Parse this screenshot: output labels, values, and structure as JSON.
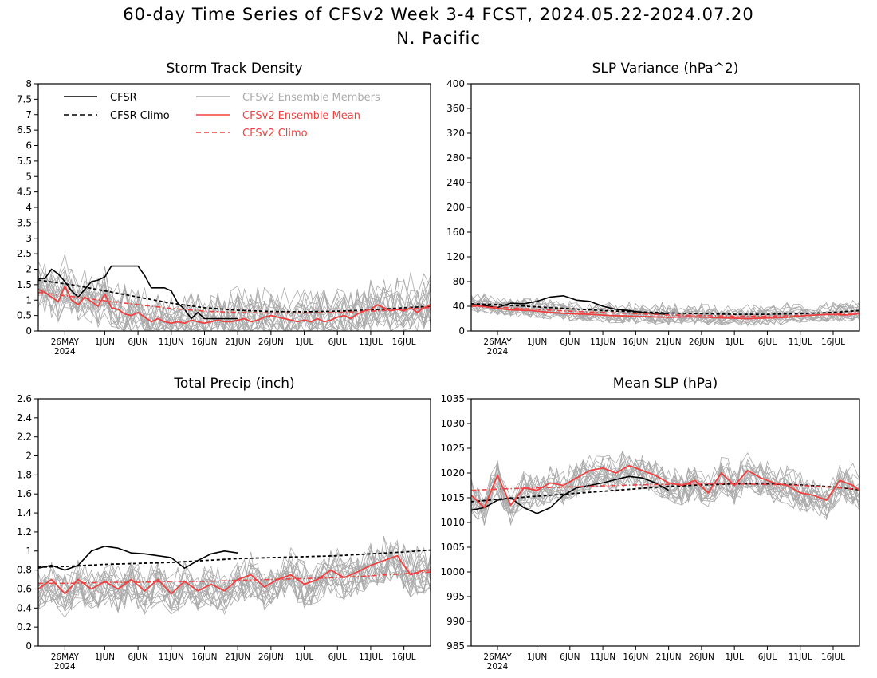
{
  "figure": {
    "title": "60-day Time Series of CFSv2 Week 3-4 FCST, 2024.05.22-2024.07.20",
    "subtitle": "N. Pacific"
  },
  "colors": {
    "cfsr": "#000000",
    "ensemble_members": "#aaaaaa",
    "ensemble_mean": "#f04040",
    "background": "#ffffff"
  },
  "chart_data": [
    {
      "type": "line",
      "title": "Storm Track Density",
      "xlabel": "",
      "ylabel": "",
      "ylim": [
        0,
        8
      ],
      "yticks": [
        0,
        0.5,
        1,
        1.5,
        2,
        2.5,
        3,
        3.5,
        4,
        4.5,
        5,
        5.5,
        6,
        6.5,
        7,
        7.5,
        8
      ],
      "x_ticks": [
        {
          "day": 4,
          "label": "26MAY",
          "sublabel": "2024"
        },
        {
          "day": 10,
          "label": "1JUN"
        },
        {
          "day": 15,
          "label": "6JUN"
        },
        {
          "day": 20,
          "label": "11JUN"
        },
        {
          "day": 25,
          "label": "16JUN"
        },
        {
          "day": 30,
          "label": "21JUN"
        },
        {
          "day": 35,
          "label": "26JUN"
        },
        {
          "day": 40,
          "label": "1JUL"
        },
        {
          "day": 45,
          "label": "6JUL"
        },
        {
          "day": 50,
          "label": "11JUL"
        },
        {
          "day": 55,
          "label": "16JUL"
        }
      ],
      "grid": false,
      "legend": {
        "placement": "top-left",
        "entries": [
          "CFSR",
          "CFSR Climo",
          "CFSv2 Ensemble Members",
          "CFSv2 Ensemble Mean",
          "CFSv2 Climo"
        ]
      },
      "x_start_date": "2024-05-22",
      "series": [
        {
          "name": "CFSR",
          "style": "solid-black",
          "x": [
            0,
            1,
            2,
            3,
            4,
            5,
            6,
            7,
            8,
            9,
            10,
            11,
            12,
            13,
            14,
            15,
            16,
            17,
            18,
            19,
            20,
            21,
            22,
            23,
            24,
            25,
            26,
            27,
            28,
            29,
            30
          ],
          "values": [
            1.7,
            1.7,
            2.0,
            1.85,
            1.6,
            1.3,
            1.1,
            1.35,
            1.6,
            1.65,
            1.75,
            2.1,
            2.1,
            2.1,
            2.1,
            2.1,
            1.8,
            1.4,
            1.4,
            1.4,
            1.3,
            0.9,
            0.7,
            0.4,
            0.6,
            0.4,
            0.4,
            0.4,
            0.4,
            0.4,
            0.4
          ]
        },
        {
          "name": "CFSR Climo",
          "style": "dashed-black",
          "x": [
            0,
            5,
            10,
            15,
            20,
            25,
            30,
            35,
            40,
            45,
            50,
            55,
            59
          ],
          "values": [
            1.65,
            1.5,
            1.3,
            1.1,
            0.9,
            0.75,
            0.67,
            0.63,
            0.62,
            0.64,
            0.68,
            0.75,
            0.8
          ]
        },
        {
          "name": "CFSv2 Ensemble Mean",
          "style": "solid-red",
          "x": [
            0,
            1,
            2,
            3,
            4,
            5,
            6,
            7,
            8,
            9,
            10,
            11,
            12,
            13,
            14,
            15,
            16,
            17,
            18,
            19,
            20,
            21,
            22,
            23,
            24,
            25,
            26,
            27,
            28,
            29,
            30,
            31,
            32,
            33,
            34,
            35,
            36,
            37,
            38,
            39,
            40,
            41,
            42,
            43,
            44,
            45,
            46,
            47,
            48,
            49,
            50,
            51,
            52,
            53,
            54,
            55,
            56,
            57,
            58,
            59
          ],
          "values": [
            1.35,
            1.25,
            1.1,
            0.95,
            1.45,
            1.0,
            0.85,
            1.1,
            0.95,
            0.8,
            1.2,
            0.75,
            0.7,
            0.55,
            0.5,
            0.6,
            0.45,
            0.3,
            0.4,
            0.3,
            0.25,
            0.3,
            0.25,
            0.35,
            0.3,
            0.25,
            0.3,
            0.35,
            0.3,
            0.3,
            0.35,
            0.4,
            0.3,
            0.35,
            0.45,
            0.5,
            0.45,
            0.4,
            0.35,
            0.3,
            0.35,
            0.3,
            0.4,
            0.3,
            0.35,
            0.45,
            0.5,
            0.4,
            0.55,
            0.65,
            0.7,
            0.85,
            0.75,
            0.65,
            0.7,
            0.65,
            0.75,
            0.6,
            0.75,
            0.85
          ]
        },
        {
          "name": "CFSv2 Climo",
          "style": "dashed-red",
          "x": [
            0,
            5,
            10,
            15,
            20,
            25,
            30,
            35,
            40,
            45,
            50,
            55,
            59
          ],
          "values": [
            1.25,
            1.12,
            0.98,
            0.85,
            0.73,
            0.64,
            0.6,
            0.58,
            0.58,
            0.6,
            0.64,
            0.7,
            0.76
          ]
        }
      ],
      "ensemble_band": {
        "name": "CFSv2 Ensemble Members",
        "min_offset": -0.7,
        "max_offset": 1.2
      }
    },
    {
      "type": "line",
      "title": "SLP Variance (hPa^2)",
      "xlabel": "",
      "ylabel": "",
      "ylim": [
        0,
        400
      ],
      "yticks": [
        0,
        40,
        80,
        120,
        160,
        200,
        240,
        280,
        320,
        360,
        400
      ],
      "x_ticks": [
        {
          "day": 4,
          "label": "26MAY",
          "sublabel": "2024"
        },
        {
          "day": 10,
          "label": "1JUN"
        },
        {
          "day": 15,
          "label": "6JUN"
        },
        {
          "day": 20,
          "label": "11JUN"
        },
        {
          "day": 25,
          "label": "16JUN"
        },
        {
          "day": 30,
          "label": "21JUN"
        },
        {
          "day": 35,
          "label": "26JUN"
        },
        {
          "day": 40,
          "label": "1JUL"
        },
        {
          "day": 45,
          "label": "6JUL"
        },
        {
          "day": 50,
          "label": "11JUL"
        },
        {
          "day": 55,
          "label": "16JUL"
        }
      ],
      "grid": false,
      "x_start_date": "2024-05-22",
      "series": [
        {
          "name": "CFSR",
          "style": "solid-black",
          "x": [
            0,
            2,
            4,
            6,
            8,
            10,
            12,
            14,
            16,
            18,
            20,
            22,
            24,
            26,
            28,
            30
          ],
          "values": [
            43,
            41,
            38,
            45,
            44,
            48,
            55,
            57,
            50,
            48,
            40,
            35,
            33,
            30,
            28,
            27
          ]
        },
        {
          "name": "CFSR Climo",
          "style": "dashed-black",
          "x": [
            0,
            5,
            10,
            15,
            20,
            25,
            30,
            35,
            40,
            45,
            50,
            55,
            59
          ],
          "values": [
            44,
            42,
            39,
            36,
            33,
            31,
            29,
            28,
            27,
            27,
            28,
            30,
            33
          ]
        },
        {
          "name": "CFSv2 Ensemble Mean",
          "style": "solid-red",
          "x": [
            0,
            3,
            6,
            9,
            12,
            15,
            18,
            21,
            24,
            27,
            30,
            33,
            36,
            39,
            42,
            45,
            48,
            51,
            54,
            57,
            59
          ],
          "values": [
            42,
            38,
            34,
            33,
            30,
            28,
            27,
            25,
            24,
            23,
            22,
            23,
            22,
            21,
            20,
            21,
            22,
            25,
            27,
            26,
            28
          ]
        },
        {
          "name": "CFSv2 Climo",
          "style": "dashed-red",
          "x": [
            0,
            5,
            10,
            15,
            20,
            25,
            30,
            35,
            40,
            45,
            50,
            55,
            59
          ],
          "values": [
            40,
            38,
            35,
            32,
            30,
            28,
            26,
            25,
            24,
            24,
            25,
            27,
            30
          ]
        }
      ],
      "ensemble_band": {
        "name": "CFSv2 Ensemble Members",
        "min_offset": -12,
        "max_offset": 25
      }
    },
    {
      "type": "line",
      "title": "Total Precip (inch)",
      "xlabel": "",
      "ylabel": "",
      "ylim": [
        0,
        2.6
      ],
      "yticks": [
        0,
        0.2,
        0.4,
        0.6,
        0.8,
        1,
        1.2,
        1.4,
        1.6,
        1.8,
        2,
        2.2,
        2.4,
        2.6
      ],
      "x_ticks": [
        {
          "day": 4,
          "label": "26MAY",
          "sublabel": "2024"
        },
        {
          "day": 10,
          "label": "1JUN"
        },
        {
          "day": 15,
          "label": "6JUN"
        },
        {
          "day": 20,
          "label": "11JUN"
        },
        {
          "day": 25,
          "label": "16JUN"
        },
        {
          "day": 30,
          "label": "21JUN"
        },
        {
          "day": 35,
          "label": "26JUN"
        },
        {
          "day": 40,
          "label": "1JUL"
        },
        {
          "day": 45,
          "label": "6JUL"
        },
        {
          "day": 50,
          "label": "11JUL"
        },
        {
          "day": 55,
          "label": "16JUL"
        }
      ],
      "grid": false,
      "x_start_date": "2024-05-22",
      "series": [
        {
          "name": "CFSR",
          "style": "solid-black",
          "x": [
            0,
            2,
            4,
            6,
            8,
            10,
            12,
            14,
            16,
            18,
            20,
            22,
            24,
            26,
            28,
            30
          ],
          "values": [
            0.82,
            0.85,
            0.8,
            0.85,
            1.0,
            1.05,
            1.03,
            0.98,
            0.97,
            0.95,
            0.93,
            0.82,
            0.9,
            0.97,
            1.0,
            0.98
          ]
        },
        {
          "name": "CFSR Climo",
          "style": "dashed-black",
          "x": [
            0,
            5,
            10,
            15,
            20,
            25,
            30,
            35,
            40,
            45,
            50,
            55,
            59
          ],
          "values": [
            0.83,
            0.84,
            0.86,
            0.87,
            0.88,
            0.9,
            0.92,
            0.93,
            0.94,
            0.95,
            0.97,
            0.99,
            1.01
          ]
        },
        {
          "name": "CFSv2 Ensemble Mean",
          "style": "solid-red",
          "x": [
            0,
            2,
            4,
            6,
            8,
            10,
            12,
            14,
            16,
            18,
            20,
            22,
            24,
            26,
            28,
            30,
            32,
            34,
            36,
            38,
            40,
            42,
            44,
            46,
            48,
            50,
            52,
            54,
            56,
            58,
            59
          ],
          "values": [
            0.6,
            0.7,
            0.55,
            0.7,
            0.6,
            0.68,
            0.6,
            0.7,
            0.58,
            0.7,
            0.55,
            0.68,
            0.58,
            0.65,
            0.58,
            0.7,
            0.75,
            0.62,
            0.7,
            0.75,
            0.65,
            0.7,
            0.8,
            0.72,
            0.78,
            0.85,
            0.9,
            0.95,
            0.75,
            0.8,
            0.8
          ]
        },
        {
          "name": "CFSv2 Climo",
          "style": "dashed-red",
          "x": [
            0,
            5,
            10,
            15,
            20,
            25,
            30,
            35,
            40,
            45,
            50,
            55,
            59
          ],
          "values": [
            0.66,
            0.66,
            0.67,
            0.67,
            0.68,
            0.68,
            0.69,
            0.7,
            0.71,
            0.72,
            0.74,
            0.76,
            0.78
          ]
        }
      ],
      "ensemble_band": {
        "name": "CFSv2 Ensemble Members",
        "min_offset": -0.25,
        "max_offset": 0.3
      }
    },
    {
      "type": "line",
      "title": "Mean SLP (hPa)",
      "xlabel": "",
      "ylabel": "",
      "ylim": [
        985,
        1035
      ],
      "yticks": [
        985,
        990,
        995,
        1000,
        1005,
        1010,
        1015,
        1020,
        1025,
        1030,
        1035
      ],
      "x_ticks": [
        {
          "day": 4,
          "label": "26MAY",
          "sublabel": "2024"
        },
        {
          "day": 10,
          "label": "1JUN"
        },
        {
          "day": 15,
          "label": "6JUN"
        },
        {
          "day": 20,
          "label": "11JUN"
        },
        {
          "day": 25,
          "label": "16JUN"
        },
        {
          "day": 30,
          "label": "21JUN"
        },
        {
          "day": 35,
          "label": "26JUN"
        },
        {
          "day": 40,
          "label": "1JUL"
        },
        {
          "day": 45,
          "label": "6JUL"
        },
        {
          "day": 50,
          "label": "11JUL"
        },
        {
          "day": 55,
          "label": "16JUL"
        }
      ],
      "grid": false,
      "x_start_date": "2024-05-22",
      "series": [
        {
          "name": "CFSR",
          "style": "solid-black",
          "x": [
            0,
            2,
            4,
            6,
            8,
            10,
            12,
            14,
            16,
            18,
            20,
            22,
            24,
            26,
            28,
            30
          ],
          "values": [
            1012.5,
            1013,
            1014.5,
            1015,
            1013,
            1011.8,
            1013,
            1015.5,
            1017,
            1017.5,
            1018,
            1018.7,
            1019.3,
            1019,
            1018,
            1016.5
          ]
        },
        {
          "name": "CFSR Climo",
          "style": "dashed-black",
          "x": [
            0,
            5,
            10,
            15,
            20,
            25,
            30,
            35,
            40,
            45,
            50,
            55,
            59
          ],
          "values": [
            1014.2,
            1014.8,
            1015.3,
            1015.8,
            1016.3,
            1016.8,
            1017.3,
            1017.6,
            1017.8,
            1017.8,
            1017.6,
            1017.2,
            1016.6
          ]
        },
        {
          "name": "CFSv2 Ensemble Mean",
          "style": "solid-red",
          "x": [
            0,
            2,
            4,
            6,
            8,
            10,
            12,
            14,
            16,
            18,
            20,
            22,
            24,
            26,
            28,
            30,
            32,
            34,
            36,
            38,
            40,
            42,
            44,
            46,
            48,
            50,
            52,
            54,
            56,
            58,
            59
          ],
          "values": [
            1015.5,
            1013,
            1019.5,
            1013.5,
            1017,
            1016.5,
            1018,
            1017.5,
            1019,
            1020.5,
            1021,
            1020,
            1021.5,
            1020.5,
            1019.5,
            1018,
            1017.5,
            1018.5,
            1016,
            1020,
            1017.5,
            1020.5,
            1019,
            1018,
            1017.5,
            1016,
            1015.5,
            1014.5,
            1018.5,
            1017.5,
            1016.5
          ]
        },
        {
          "name": "CFSv2 Climo",
          "style": "dashed-red",
          "x": [
            0,
            5,
            10,
            15,
            20,
            25,
            30,
            35,
            40,
            45,
            50,
            55,
            59
          ],
          "values": [
            1016.5,
            1016.8,
            1017,
            1017.2,
            1017.4,
            1017.6,
            1017.7,
            1017.8,
            1017.8,
            1017.7,
            1017.5,
            1017.1,
            1016.7
          ]
        }
      ],
      "ensemble_band": {
        "name": "CFSv2 Ensemble Members",
        "min_offset": -4,
        "max_offset": 4.5
      }
    }
  ]
}
